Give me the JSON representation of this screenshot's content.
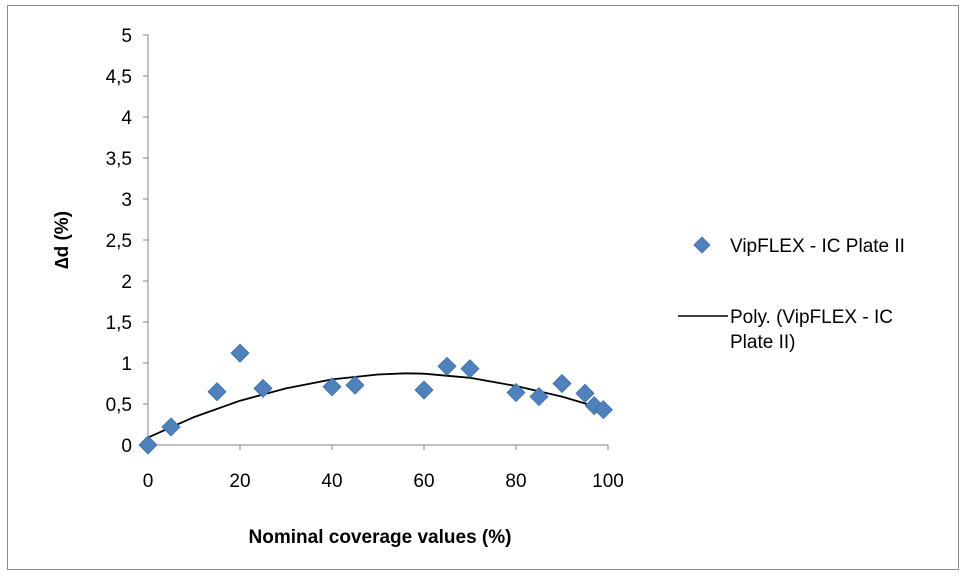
{
  "chart_data": {
    "type": "scatter",
    "xlabel": "Nominal coverage values  (%)",
    "ylabel": "∆d  (%)",
    "xlim": [
      0,
      100
    ],
    "ylim": [
      0,
      5
    ],
    "x_ticks": [
      "0",
      "20",
      "40",
      "60",
      "80",
      "100"
    ],
    "x_tick_values": [
      0,
      20,
      40,
      60,
      80,
      100
    ],
    "y_ticks": [
      "0",
      "0,5",
      "1",
      "1,5",
      "2",
      "2,5",
      "3",
      "3,5",
      "4",
      "4,5",
      "5"
    ],
    "y_tick_values": [
      0,
      0.5,
      1,
      1.5,
      2,
      2.5,
      3,
      3.5,
      4,
      4.5,
      5
    ],
    "grid": false,
    "legend_position": "right",
    "series": [
      {
        "name": "VipFLEX - IC Plate II",
        "kind": "scatter",
        "marker": "diamond",
        "color": "#4f81bd",
        "x": [
          0,
          5,
          15,
          20,
          25,
          40,
          45,
          60,
          65,
          70,
          80,
          85,
          90,
          95,
          97,
          99
        ],
        "y": [
          0.0,
          0.22,
          0.65,
          1.12,
          0.69,
          0.71,
          0.73,
          0.67,
          0.96,
          0.93,
          0.64,
          0.59,
          0.75,
          0.63,
          0.48,
          0.43
        ]
      },
      {
        "name": "Poly. (VipFLEX - IC Plate II)",
        "name_lines": [
          "Poly. (VipFLEX - IC",
          "Plate II)"
        ],
        "kind": "line",
        "color": "#000000",
        "x": [
          0,
          10,
          20,
          30,
          40,
          50,
          56,
          60,
          70,
          80,
          90,
          99
        ],
        "y": [
          0.09,
          0.34,
          0.54,
          0.69,
          0.8,
          0.86,
          0.875,
          0.87,
          0.82,
          0.72,
          0.59,
          0.44
        ]
      }
    ]
  }
}
